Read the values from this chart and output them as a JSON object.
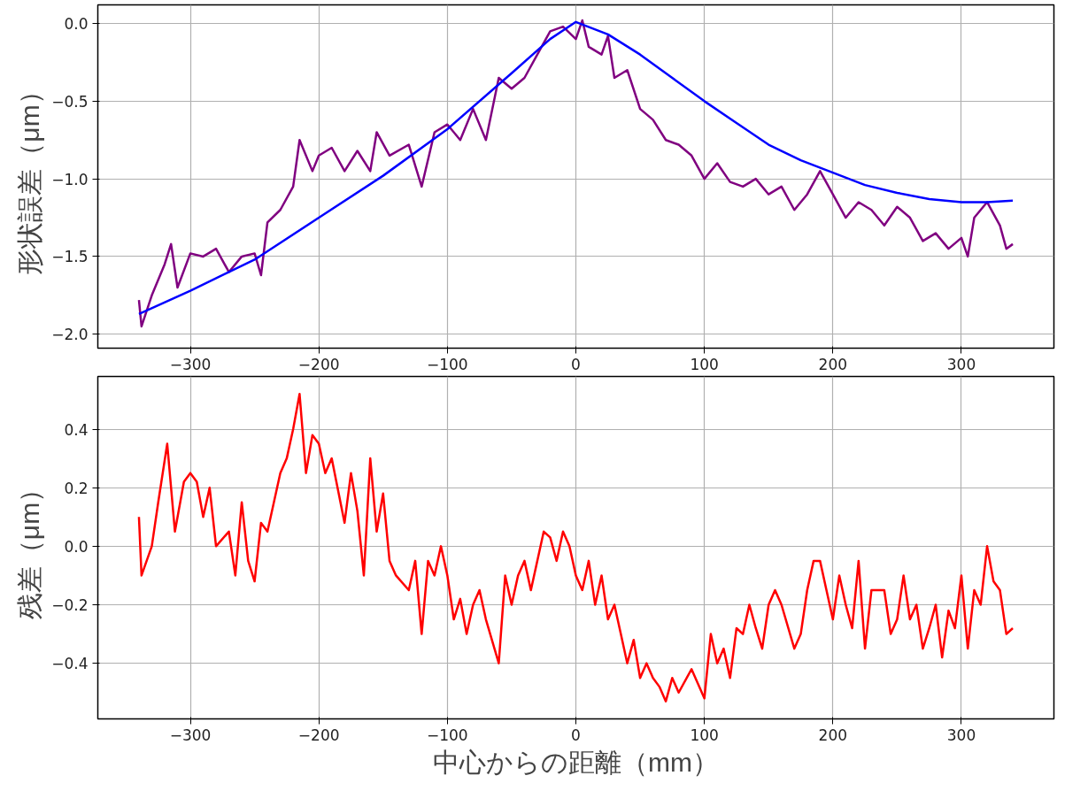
{
  "chart_data": [
    {
      "type": "line",
      "ylabel": "形状誤差（μm）",
      "xlim": [
        -372,
        372
      ],
      "ylim": [
        -2.09,
        0.12
      ],
      "xticks": [
        {
          "value": -300,
          "label": "−300"
        },
        {
          "value": -200,
          "label": "−200"
        },
        {
          "value": -100,
          "label": "−100"
        },
        0,
        100,
        200,
        300
      ],
      "yticks": [
        {
          "value": -2.0,
          "label": "−2.0"
        },
        {
          "value": -1.5,
          "label": "−1.5"
        },
        {
          "value": -1.0,
          "label": "−1.0"
        },
        {
          "value": -0.5,
          "label": "−0.5"
        },
        {
          "value": 0.0,
          "label": "0.0"
        }
      ],
      "grid": true,
      "series": [
        {
          "color": "#800080",
          "x": [
            -340,
            -338,
            -330,
            -320,
            -315,
            -310,
            -300,
            -290,
            -280,
            -270,
            -260,
            -250,
            -245,
            -240,
            -230,
            -220,
            -215,
            -205,
            -200,
            -190,
            -180,
            -170,
            -160,
            -155,
            -145,
            -130,
            -120,
            -110,
            -100,
            -90,
            -80,
            -70,
            -60,
            -50,
            -40,
            -30,
            -20,
            -10,
            0,
            5,
            10,
            20,
            25,
            30,
            40,
            50,
            60,
            70,
            80,
            90,
            100,
            110,
            120,
            130,
            140,
            150,
            160,
            170,
            180,
            190,
            200,
            210,
            220,
            230,
            240,
            250,
            260,
            270,
            280,
            290,
            300,
            305,
            310,
            320,
            330,
            335,
            340
          ],
          "values": [
            -1.78,
            -1.95,
            -1.75,
            -1.55,
            -1.42,
            -1.7,
            -1.48,
            -1.5,
            -1.45,
            -1.6,
            -1.5,
            -1.48,
            -1.62,
            -1.28,
            -1.2,
            -1.05,
            -0.75,
            -0.95,
            -0.85,
            -0.8,
            -0.95,
            -0.82,
            -0.95,
            -0.7,
            -0.85,
            -0.78,
            -1.05,
            -0.7,
            -0.65,
            -0.75,
            -0.55,
            -0.75,
            -0.35,
            -0.42,
            -0.35,
            -0.2,
            -0.05,
            -0.02,
            -0.1,
            0.02,
            -0.15,
            -0.2,
            -0.08,
            -0.35,
            -0.3,
            -0.55,
            -0.62,
            -0.75,
            -0.78,
            -0.85,
            -1.0,
            -0.9,
            -1.02,
            -1.05,
            -1.0,
            -1.1,
            -1.05,
            -1.2,
            -1.1,
            -0.95,
            -1.1,
            -1.25,
            -1.15,
            -1.2,
            -1.3,
            -1.18,
            -1.25,
            -1.4,
            -1.35,
            -1.45,
            -1.38,
            -1.5,
            -1.25,
            -1.15,
            -1.3,
            -1.45,
            -1.42
          ]
        },
        {
          "color": "#0000ff",
          "x": [
            -340,
            -300,
            -250,
            -200,
            -150,
            -100,
            -50,
            -20,
            0,
            25,
            50,
            75,
            100,
            125,
            150,
            175,
            200,
            225,
            250,
            275,
            300,
            320,
            340
          ],
          "values": [
            -1.87,
            -1.72,
            -1.52,
            -1.25,
            -0.98,
            -0.68,
            -0.32,
            -0.1,
            0.01,
            -0.07,
            -0.2,
            -0.35,
            -0.5,
            -0.64,
            -0.78,
            -0.88,
            -0.96,
            -1.04,
            -1.09,
            -1.13,
            -1.15,
            -1.15,
            -1.14
          ]
        }
      ]
    },
    {
      "type": "line",
      "ylabel": "残差（μm）",
      "xlabel": "中心からの距離（mm）",
      "xlim": [
        -372,
        372
      ],
      "ylim": [
        -0.59,
        0.58
      ],
      "xticks": [
        {
          "value": -300,
          "label": "−300"
        },
        {
          "value": -200,
          "label": "−200"
        },
        {
          "value": -100,
          "label": "−100"
        },
        0,
        100,
        200,
        300
      ],
      "yticks": [
        {
          "value": -0.4,
          "label": "−0.4"
        },
        {
          "value": -0.2,
          "label": "−0.2"
        },
        {
          "value": 0.0,
          "label": "0.0"
        },
        {
          "value": 0.2,
          "label": "0.2"
        },
        {
          "value": 0.4,
          "label": "0.4"
        }
      ],
      "grid": true,
      "series": [
        {
          "color": "#ff0000",
          "x": [
            -340,
            -338,
            -330,
            -325,
            -318,
            -312,
            -305,
            -300,
            -295,
            -290,
            -285,
            -280,
            -270,
            -265,
            -260,
            -255,
            -250,
            -245,
            -240,
            -235,
            -230,
            -225,
            -220,
            -215,
            -210,
            -205,
            -200,
            -195,
            -190,
            -180,
            -175,
            -170,
            -165,
            -160,
            -155,
            -150,
            -145,
            -140,
            -130,
            -125,
            -120,
            -115,
            -110,
            -105,
            -100,
            -95,
            -90,
            -85,
            -80,
            -75,
            -70,
            -60,
            -55,
            -50,
            -45,
            -40,
            -35,
            -25,
            -20,
            -15,
            -10,
            -5,
            0,
            5,
            10,
            15,
            20,
            25,
            30,
            35,
            40,
            45,
            50,
            55,
            60,
            65,
            70,
            75,
            80,
            90,
            95,
            100,
            105,
            110,
            115,
            120,
            125,
            130,
            135,
            140,
            145,
            150,
            155,
            160,
            170,
            175,
            180,
            185,
            190,
            195,
            200,
            205,
            210,
            215,
            220,
            225,
            230,
            240,
            245,
            250,
            255,
            260,
            265,
            270,
            275,
            280,
            285,
            290,
            295,
            300,
            305,
            310,
            315,
            320,
            325,
            330,
            335,
            340
          ],
          "values": [
            0.1,
            -0.1,
            0.0,
            0.15,
            0.35,
            0.05,
            0.22,
            0.25,
            0.22,
            0.1,
            0.2,
            0.0,
            0.05,
            -0.1,
            0.15,
            -0.05,
            -0.12,
            0.08,
            0.05,
            0.15,
            0.25,
            0.3,
            0.4,
            0.52,
            0.25,
            0.38,
            0.35,
            0.25,
            0.3,
            0.08,
            0.25,
            0.12,
            -0.1,
            0.3,
            0.05,
            0.18,
            -0.05,
            -0.1,
            -0.15,
            -0.05,
            -0.3,
            -0.05,
            -0.1,
            0.0,
            -0.1,
            -0.25,
            -0.18,
            -0.3,
            -0.2,
            -0.15,
            -0.25,
            -0.4,
            -0.1,
            -0.2,
            -0.1,
            -0.05,
            -0.15,
            0.05,
            0.03,
            -0.05,
            0.05,
            0.0,
            -0.1,
            -0.15,
            -0.05,
            -0.2,
            -0.1,
            -0.25,
            -0.2,
            -0.3,
            -0.4,
            -0.32,
            -0.45,
            -0.4,
            -0.45,
            -0.48,
            -0.53,
            -0.45,
            -0.5,
            -0.42,
            -0.47,
            -0.52,
            -0.3,
            -0.4,
            -0.35,
            -0.45,
            -0.28,
            -0.3,
            -0.2,
            -0.28,
            -0.35,
            -0.2,
            -0.15,
            -0.2,
            -0.35,
            -0.3,
            -0.15,
            -0.05,
            -0.05,
            -0.15,
            -0.25,
            -0.1,
            -0.2,
            -0.28,
            -0.05,
            -0.35,
            -0.15,
            -0.15,
            -0.3,
            -0.25,
            -0.1,
            -0.25,
            -0.2,
            -0.35,
            -0.28,
            -0.2,
            -0.38,
            -0.22,
            -0.28,
            -0.1,
            -0.35,
            -0.15,
            -0.2,
            0.0,
            -0.12,
            -0.15,
            -0.3,
            -0.28
          ]
        }
      ]
    }
  ]
}
